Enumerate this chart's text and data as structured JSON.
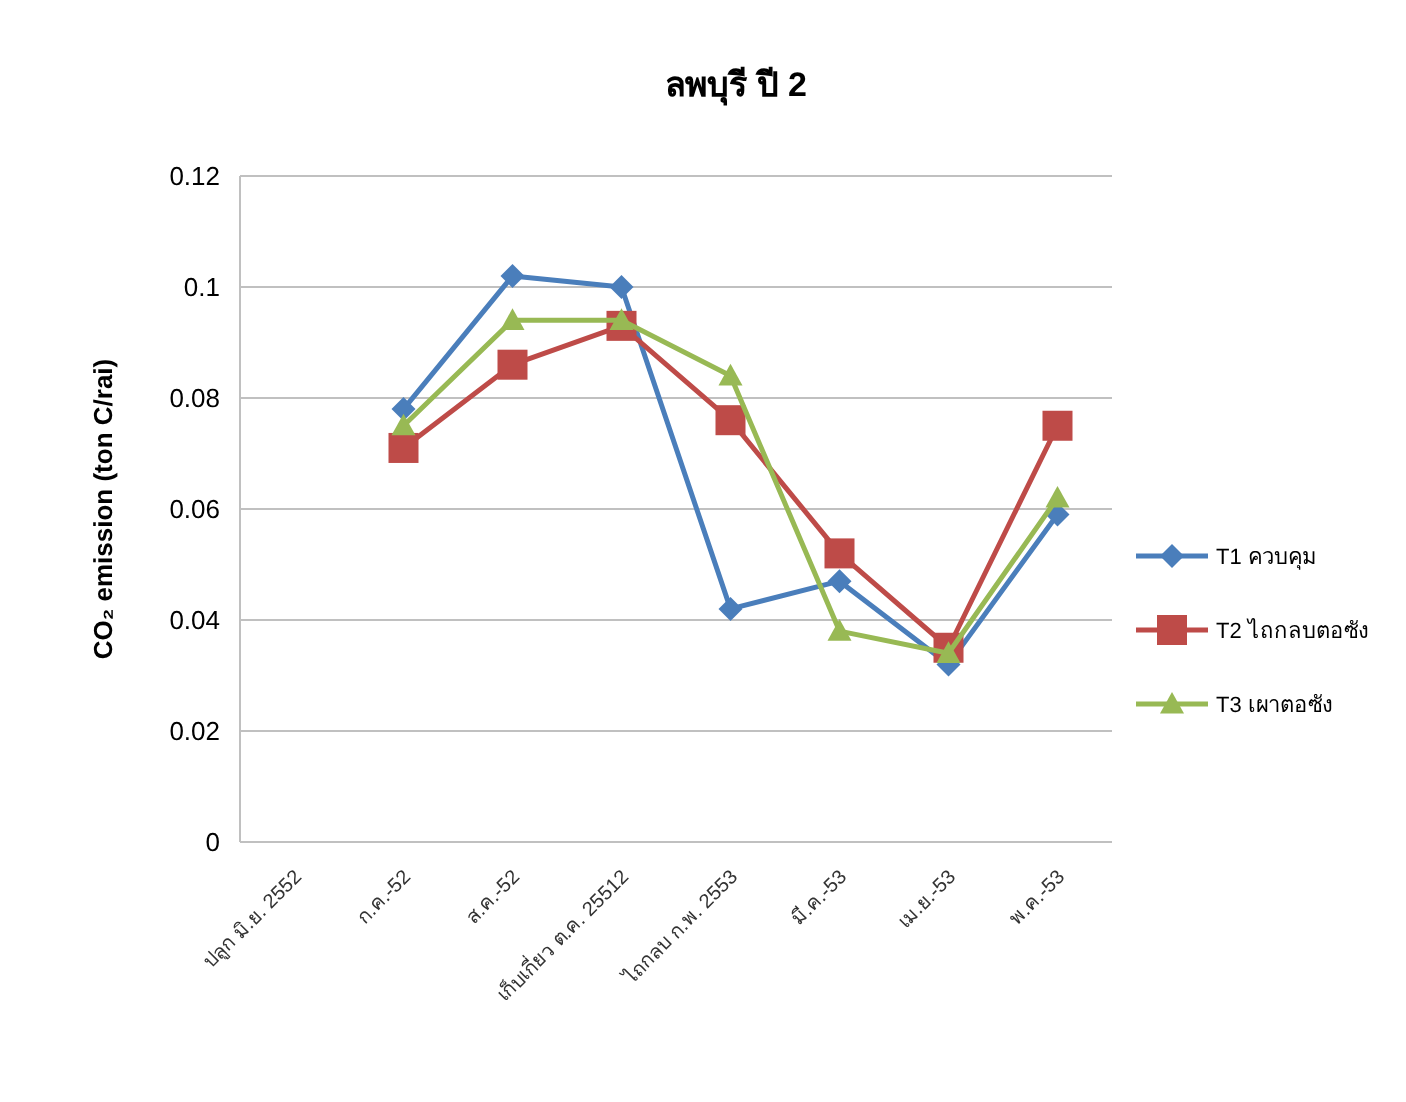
{
  "chart_data": {
    "type": "line",
    "title": "ลพบุรี ปี 2",
    "ylabel": "CO₂ emission (ton C/rai)",
    "categories": [
      "ปลูก มิ.ย. 2552",
      "ก.ค.-52",
      "ส.ค.-52",
      "เก็บเกี่ยว ต.ค. 25512",
      "ไถกลบ ก.พ. 2553",
      "มี.ค.-53",
      "เม.ย.-53",
      "พ.ค.-53"
    ],
    "series": [
      {
        "name": "T1 ควบคุม",
        "color": "#4a7ebb",
        "marker": "diamond",
        "values": [
          null,
          0.078,
          0.102,
          0.1,
          0.042,
          0.047,
          0.032,
          0.059
        ]
      },
      {
        "name": "T2 ไถกลบตอซัง",
        "color": "#be4b48",
        "marker": "square",
        "values": [
          null,
          0.071,
          0.086,
          0.093,
          0.076,
          0.052,
          0.035,
          0.075
        ]
      },
      {
        "name": "T3 เผาตอซัง",
        "color": "#98b954",
        "marker": "triangle",
        "values": [
          null,
          0.075,
          0.094,
          0.094,
          0.084,
          0.038,
          0.034,
          0.062
        ]
      }
    ],
    "ylim": [
      0,
      0.12
    ],
    "yticks": [
      0,
      0.02,
      0.04,
      0.06,
      0.08,
      0.1,
      0.12
    ],
    "grid": "y",
    "legend": "right"
  }
}
